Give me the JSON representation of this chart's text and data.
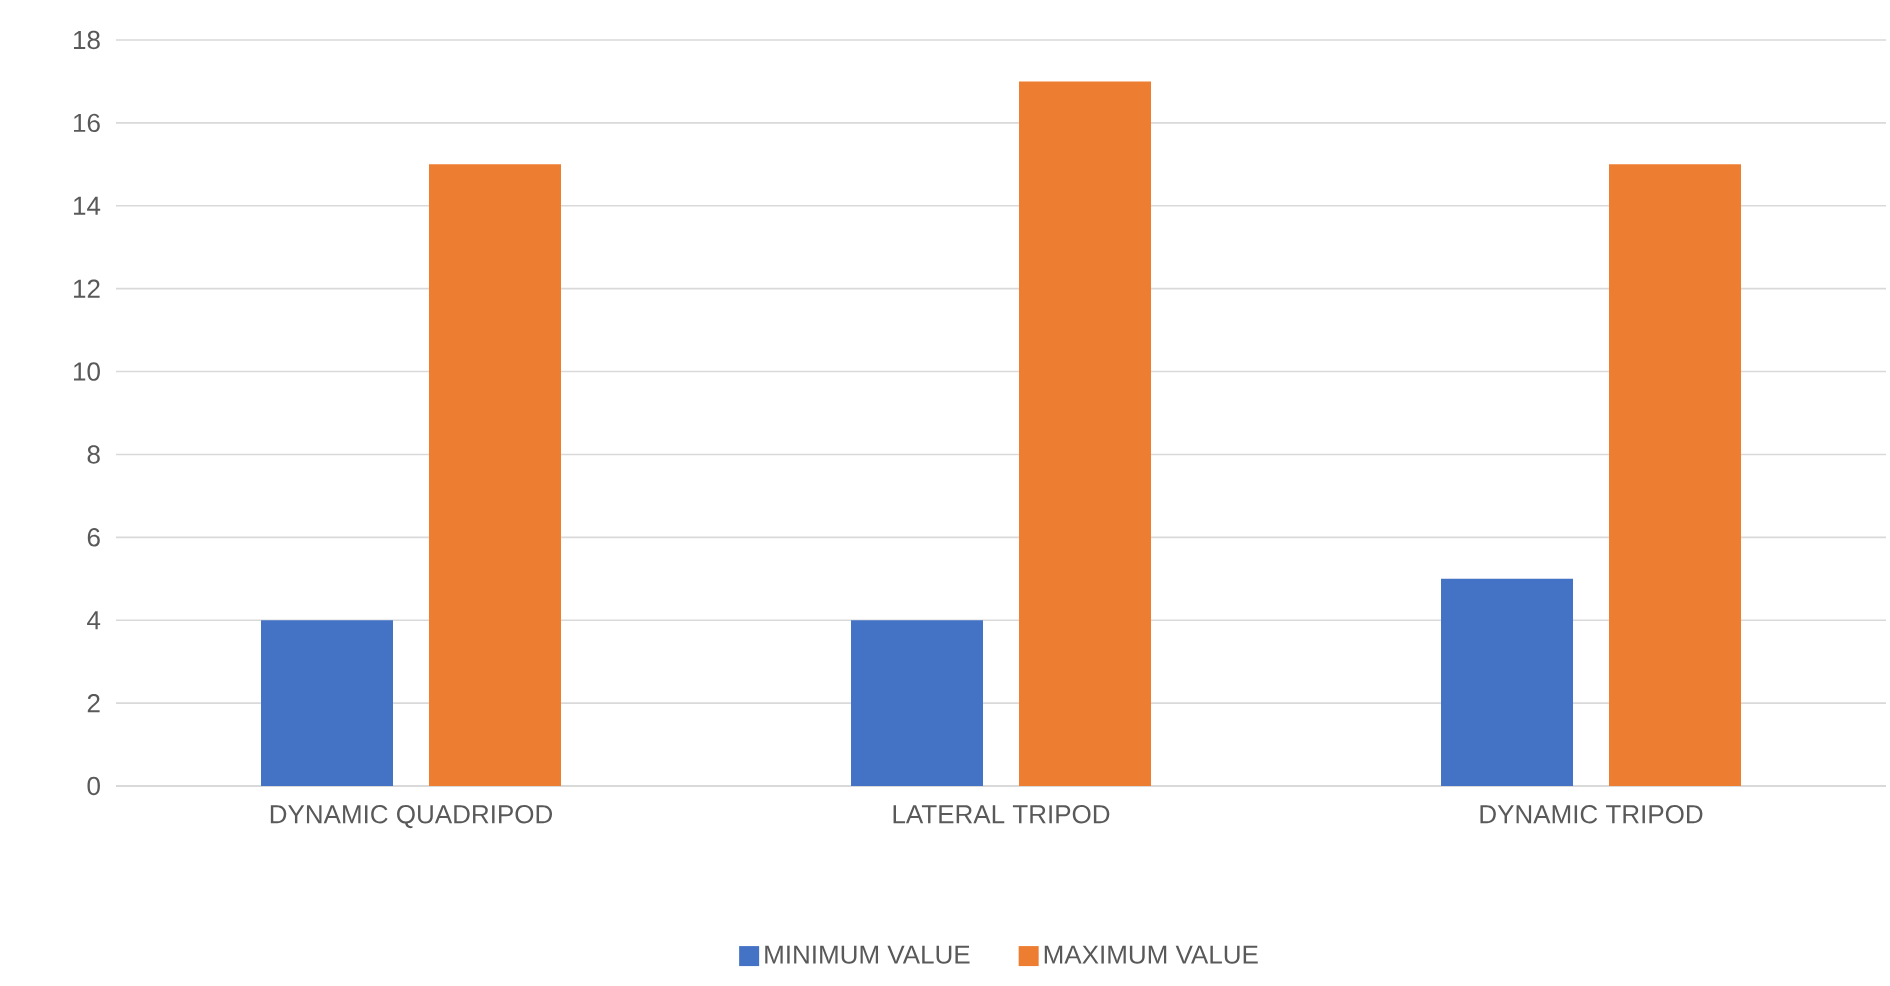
{
  "chart_data": {
    "type": "bar",
    "categories": [
      "DYNAMIC QUADRIPOD",
      "LATERAL TRIPOD",
      "DYNAMIC TRIPOD"
    ],
    "series": [
      {
        "name": "MINIMUM VALUE",
        "color": "#4472c4",
        "values": [
          4,
          4,
          5
        ]
      },
      {
        "name": "MAXIMUM VALUE",
        "color": "#ed7d31",
        "values": [
          15,
          17,
          15
        ]
      }
    ],
    "ylim": [
      0,
      18
    ],
    "yticks": [
      0,
      2,
      4,
      6,
      8,
      10,
      12,
      14,
      16,
      18
    ],
    "grid": "y",
    "legend": "bottom"
  }
}
